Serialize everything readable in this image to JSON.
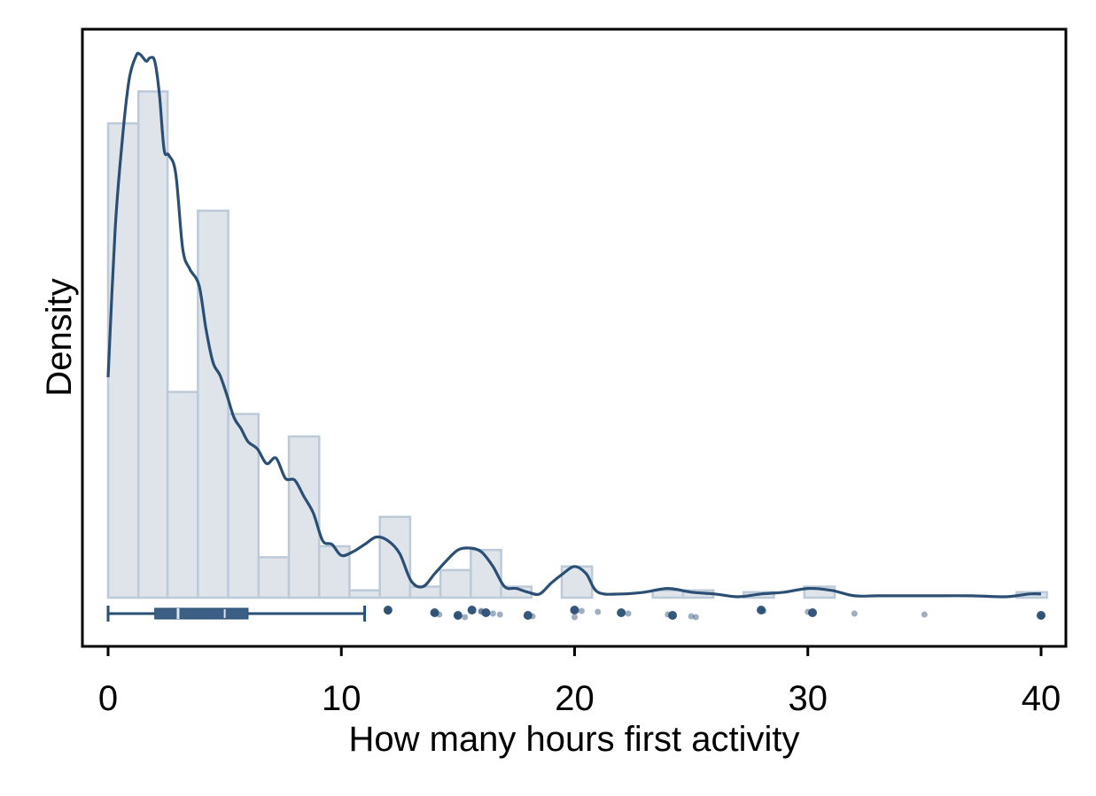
{
  "chart_data": {
    "type": "histogram",
    "title": "",
    "xlabel": "How many hours first activity",
    "ylabel": "Density",
    "xlim": [
      0,
      40
    ],
    "xticks": [
      0,
      10,
      20,
      30,
      40
    ],
    "xtick_labels": [
      "0",
      "10",
      "20",
      "30",
      "40"
    ],
    "y_tick_labels_shown": false,
    "grid": false,
    "colors": {
      "bar_fill": "#dfe4eb",
      "bar_stroke": "#bccad8",
      "line": "#2a4e74",
      "points": "#2a4e74"
    },
    "histogram": {
      "bin_edges": [
        0,
        1.3,
        2.55,
        3.85,
        5.15,
        6.45,
        7.75,
        9.05,
        10.35,
        11.65,
        12.95,
        14.25,
        15.55,
        16.85,
        18.15,
        19.45,
        20.75,
        22.05,
        23.35,
        24.65,
        25.95,
        27.25,
        28.55,
        29.85,
        31.15,
        32.45,
        33.75,
        35.05,
        36.35,
        37.65,
        38.95,
        40.25
      ],
      "relative_heights": [
        0.8724,
        0.9311,
        0.3784,
        0.7118,
        0.3378,
        0.0743,
        0.2965,
        0.0946,
        0.0135,
        0.1486,
        0.0203,
        0.0507,
        0.0878,
        0.0203,
        0,
        0.0574,
        0,
        0,
        0.0135,
        0.0135,
        0,
        0.0101,
        0,
        0.0203,
        0,
        0,
        0,
        0,
        0,
        0,
        0.0101
      ]
    },
    "density_curve": {
      "x": [
        0,
        0.3,
        0.6,
        0.9,
        1.2,
        1.35,
        1.5,
        1.65,
        1.8,
        2.0,
        2.2,
        2.4,
        2.6,
        2.9,
        3.2,
        3.5,
        3.9,
        4.2,
        4.5,
        4.8,
        5.1,
        5.4,
        5.7,
        6.0,
        6.4,
        6.8,
        7.2,
        7.6,
        8.0,
        8.4,
        8.8,
        9.2,
        9.6,
        10.0,
        10.5,
        11.0,
        11.5,
        12.0,
        12.5,
        13.0,
        13.5,
        14.0,
        14.5,
        15.0,
        15.5,
        16.0,
        16.5,
        17.0,
        17.5,
        18.0,
        18.5,
        19.0,
        19.5,
        20.0,
        20.5,
        21.0,
        22.0,
        23.0,
        24.0,
        25.0,
        26.0,
        27.0,
        28.0,
        29.0,
        30.0,
        31.0,
        32.0,
        33.0,
        35.0,
        37.0,
        38.5,
        39.5,
        40.0
      ],
      "relative_y": [
        0.4053,
        0.6757,
        0.8378,
        0.9527,
        0.9966,
        1.0,
        0.9932,
        0.9865,
        0.9932,
        0.9865,
        0.9257,
        0.8243,
        0.8142,
        0.7804,
        0.6419,
        0.6047,
        0.5743,
        0.4932,
        0.4324,
        0.4088,
        0.3716,
        0.3311,
        0.3108,
        0.2872,
        0.2736,
        0.2466,
        0.2568,
        0.2196,
        0.2162,
        0.1858,
        0.1554,
        0.1047,
        0.098,
        0.0777,
        0.0845,
        0.098,
        0.1115,
        0.1047,
        0.0811,
        0.0304,
        0.0203,
        0.0439,
        0.0676,
        0.0878,
        0.0912,
        0.0845,
        0.0574,
        0.0203,
        0.0169,
        0.0101,
        0.0067,
        0.027,
        0.0439,
        0.0574,
        0.0439,
        0.0101,
        0.0068,
        0.0101,
        0.0169,
        0.0101,
        0.0068,
        0.0017,
        0.0068,
        0.0101,
        0.0169,
        0.0135,
        0.0034,
        0.0034,
        0.0034,
        0.0034,
        0.0017,
        0.0068,
        0.0068
      ]
    },
    "boxplot": {
      "whisker_low": 0,
      "q1": 2.0,
      "median": 3.0,
      "mean": 5.0,
      "q3": 6.0,
      "whisker_high": 11.0
    },
    "outliers": [
      12,
      12,
      12,
      14,
      14,
      14.2,
      15,
      15,
      15.3,
      15.6,
      16,
      16,
      16.2,
      16.5,
      16.8,
      18,
      18.2,
      20,
      20,
      20.3,
      21,
      22,
      22.3,
      24,
      24.2,
      25,
      25.2,
      28,
      28.1,
      30,
      30.2,
      32,
      35,
      40,
      40
    ]
  }
}
